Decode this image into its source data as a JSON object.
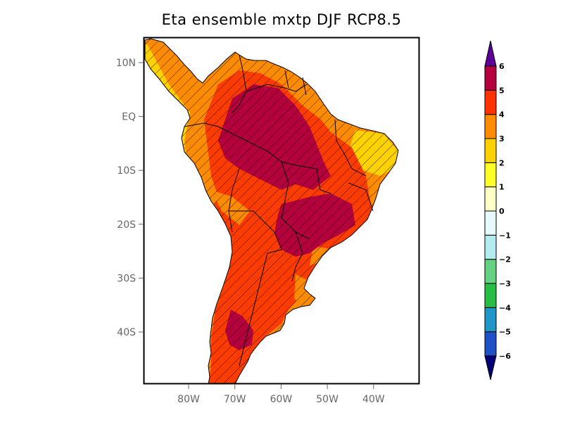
{
  "title": "Eta ensemble mxtp DJF RCP8.5",
  "map": {
    "projection": "latlon",
    "lat_range": [
      -50,
      15
    ],
    "lon_range": [
      -90,
      -30
    ],
    "y_ticks": [
      {
        "lat": 10,
        "label": "10N"
      },
      {
        "lat": 0,
        "label": "EQ"
      },
      {
        "lat": -10,
        "label": "10S"
      },
      {
        "lat": -20,
        "label": "20S"
      },
      {
        "lat": -30,
        "label": "30S"
      },
      {
        "lat": -40,
        "label": "40S"
      }
    ],
    "x_ticks": [
      {
        "lon": -80,
        "label": "80W"
      },
      {
        "lon": -70,
        "label": "70W"
      },
      {
        "lon": -60,
        "label": "60W"
      },
      {
        "lon": -50,
        "label": "50W"
      },
      {
        "lon": -40,
        "label": "40W"
      }
    ],
    "hatching": "diagonal",
    "fill_colors": {
      "land_yellow": "#ffd700",
      "land_orange": "#ff8c00",
      "land_red": "#ff3c00",
      "land_darkred": "#b4003c"
    }
  },
  "colorbar": {
    "levels": [
      "-6",
      "-5",
      "-4",
      "-3",
      "-2",
      "-1",
      "0",
      "1",
      "2",
      "3",
      "4",
      "5",
      "6"
    ],
    "colors": [
      "#1e50c8",
      "#1e96c8",
      "#28be46",
      "#64d282",
      "#b4ebf0",
      "#e6fafa",
      "#ffffc8",
      "#ffff28",
      "#ffd200",
      "#ff8c00",
      "#ff3200",
      "#b4003c"
    ],
    "under_color": "#000078",
    "over_color": "#5a0096"
  }
}
